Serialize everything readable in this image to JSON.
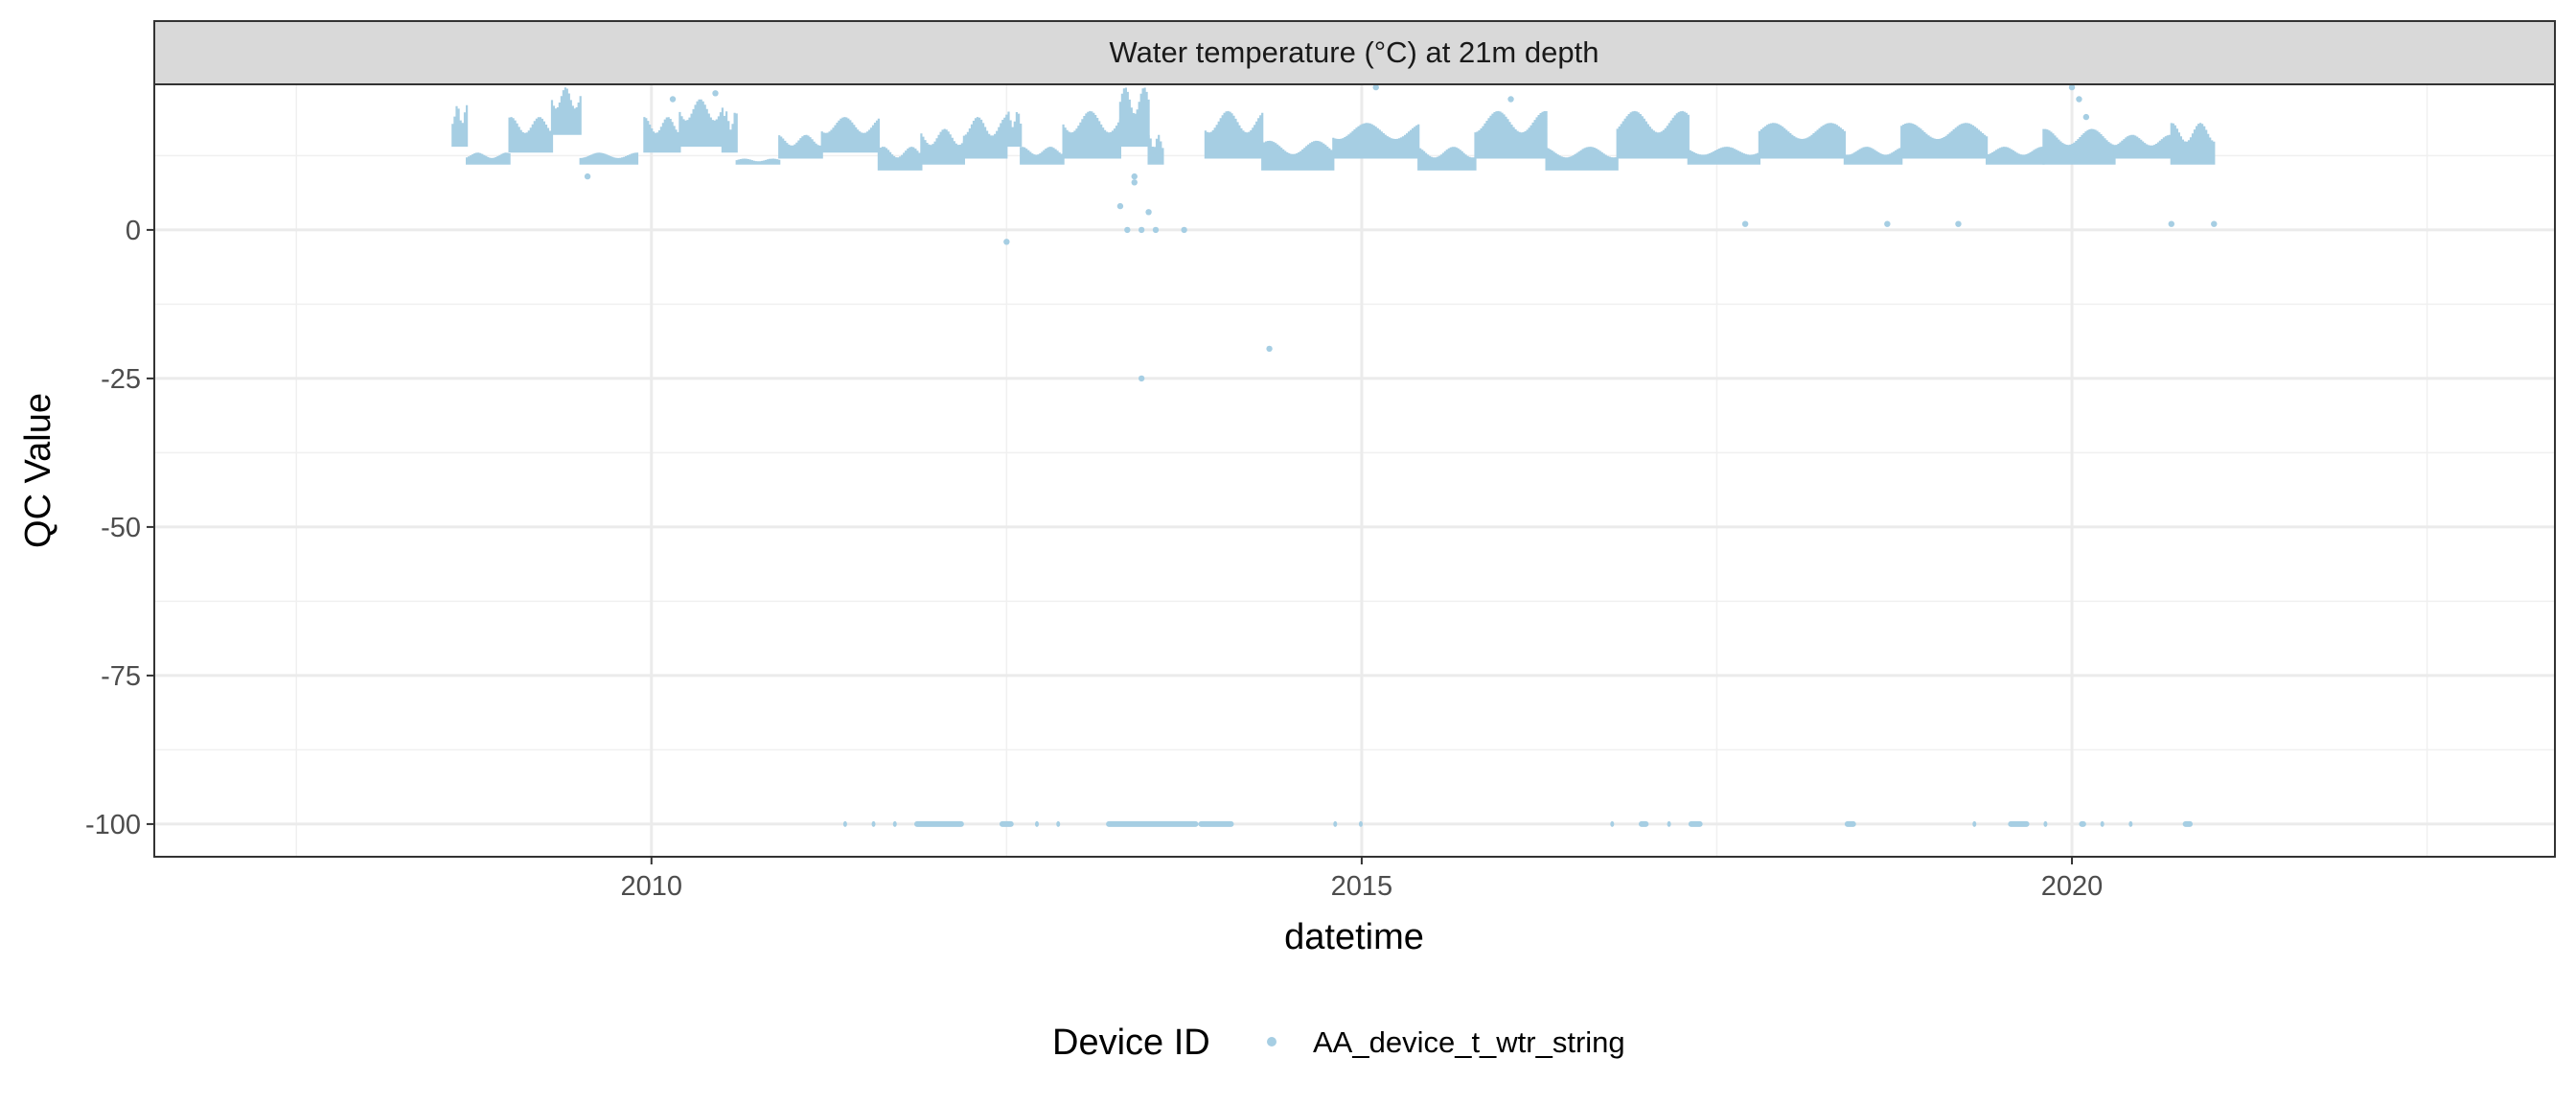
{
  "chart_data": {
    "type": "scatter",
    "facet_title": "Water temperature (°C) at 21m depth",
    "xlabel": "datetime",
    "ylabel": "QC Value",
    "x_range": [
      2006.5,
      2023.4
    ],
    "y_range": [
      -105.5,
      24.5
    ],
    "x_ticks": [
      2010,
      2015,
      2020
    ],
    "x_tick_labels": [
      "2010",
      "2015",
      "2020"
    ],
    "y_ticks": [
      0,
      -25,
      -50,
      -75,
      -100
    ],
    "y_tick_labels": [
      "0",
      "-25",
      "-50",
      "-75",
      "-100"
    ],
    "grid": true,
    "legend": {
      "position": "bottom",
      "title": "Device ID",
      "entries": [
        {
          "label": "AA_device_t_wtr_string",
          "color": "#a6cee3"
        }
      ]
    },
    "series": [
      {
        "name": "AA_device_t_wtr_string",
        "color": "#a6cee3",
        "segments": [
          {
            "start": 2008.6,
            "end": 2008.7,
            "low": 14,
            "high": 21
          },
          {
            "start": 2008.7,
            "end": 2009.0,
            "low": 11,
            "high": 13
          },
          {
            "start": 2009.0,
            "end": 2009.3,
            "low": 13,
            "high": 19
          },
          {
            "start": 2009.3,
            "end": 2009.5,
            "low": 16,
            "high": 24
          },
          {
            "start": 2009.5,
            "end": 2009.9,
            "low": 11,
            "high": 13
          },
          {
            "start": 2009.95,
            "end": 2010.2,
            "low": 13,
            "high": 19
          },
          {
            "start": 2010.2,
            "end": 2010.5,
            "low": 14,
            "high": 22
          },
          {
            "start": 2010.5,
            "end": 2010.6,
            "low": 13,
            "high": 20
          },
          {
            "start": 2010.6,
            "end": 2010.9,
            "low": 11,
            "high": 12
          },
          {
            "start": 2010.9,
            "end": 2011.2,
            "low": 12,
            "high": 16
          },
          {
            "start": 2011.2,
            "end": 2011.6,
            "low": 13,
            "high": 19
          },
          {
            "start": 2011.6,
            "end": 2011.9,
            "low": 10,
            "high": 14
          },
          {
            "start": 2011.9,
            "end": 2012.2,
            "low": 11,
            "high": 17
          },
          {
            "start": 2012.2,
            "end": 2012.5,
            "low": 12,
            "high": 19
          },
          {
            "start": 2012.5,
            "end": 2012.6,
            "low": 14,
            "high": 20
          },
          {
            "start": 2012.6,
            "end": 2012.9,
            "low": 11,
            "high": 14
          },
          {
            "start": 2012.9,
            "end": 2013.3,
            "low": 12,
            "high": 20
          },
          {
            "start": 2013.3,
            "end": 2013.5,
            "low": 14,
            "high": 24
          },
          {
            "start": 2013.5,
            "end": 2013.6,
            "low": 11,
            "high": 16
          },
          {
            "start": 2013.9,
            "end": 2014.3,
            "low": 12,
            "high": 20
          },
          {
            "start": 2014.3,
            "end": 2014.8,
            "low": 10,
            "high": 15
          },
          {
            "start": 2014.8,
            "end": 2015.4,
            "low": 12,
            "high": 18
          },
          {
            "start": 2015.4,
            "end": 2015.8,
            "low": 10,
            "high": 14
          },
          {
            "start": 2015.8,
            "end": 2016.3,
            "low": 12,
            "high": 20
          },
          {
            "start": 2016.3,
            "end": 2016.8,
            "low": 10,
            "high": 14
          },
          {
            "start": 2016.8,
            "end": 2017.3,
            "low": 12,
            "high": 20
          },
          {
            "start": 2017.3,
            "end": 2017.8,
            "low": 11,
            "high": 14
          },
          {
            "start": 2017.8,
            "end": 2018.4,
            "low": 12,
            "high": 18
          },
          {
            "start": 2018.4,
            "end": 2018.8,
            "low": 11,
            "high": 14
          },
          {
            "start": 2018.8,
            "end": 2019.4,
            "low": 12,
            "high": 18
          },
          {
            "start": 2019.4,
            "end": 2019.8,
            "low": 11,
            "high": 14
          },
          {
            "start": 2019.8,
            "end": 2020.3,
            "low": 11,
            "high": 17
          },
          {
            "start": 2020.3,
            "end": 2020.7,
            "low": 12,
            "high": 16
          },
          {
            "start": 2020.7,
            "end": 2021.0,
            "low": 11,
            "high": 18
          }
        ],
        "points": [
          [
            2009.55,
            9
          ],
          [
            2012.5,
            -2
          ],
          [
            2013.3,
            4
          ],
          [
            2013.35,
            0
          ],
          [
            2013.4,
            8
          ],
          [
            2013.45,
            0
          ],
          [
            2013.5,
            3
          ],
          [
            2013.55,
            0
          ],
          [
            2013.4,
            9
          ],
          [
            2013.75,
            0
          ],
          [
            2013.45,
            -25
          ],
          [
            2014.35,
            -20
          ],
          [
            2017.7,
            1
          ],
          [
            2018.7,
            1
          ],
          [
            2019.2,
            1
          ],
          [
            2020.7,
            1
          ],
          [
            2021.0,
            1
          ],
          [
            2015.1,
            24
          ],
          [
            2016.05,
            22
          ],
          [
            2020.0,
            24
          ],
          [
            2020.05,
            22
          ],
          [
            2020.1,
            19
          ],
          [
            2009.4,
            22
          ],
          [
            2010.15,
            22
          ],
          [
            2010.45,
            23
          ]
        ],
        "bottom_runs": [
          [
            2011.35,
            2011.37
          ],
          [
            2011.55,
            2011.57
          ],
          [
            2011.7,
            2011.72
          ],
          [
            2011.85,
            2012.2
          ],
          [
            2012.45,
            2012.55
          ],
          [
            2012.7,
            2012.72
          ],
          [
            2012.85,
            2012.87
          ],
          [
            2013.2,
            2013.85
          ],
          [
            2013.85,
            2014.1
          ],
          [
            2014.8,
            2014.82
          ],
          [
            2014.98,
            2015.0
          ],
          [
            2016.75,
            2016.77
          ],
          [
            2016.95,
            2017.02
          ],
          [
            2017.15,
            2017.17
          ],
          [
            2017.3,
            2017.4
          ],
          [
            2018.4,
            2018.48
          ],
          [
            2019.3,
            2019.32
          ],
          [
            2019.55,
            2019.7
          ],
          [
            2019.8,
            2019.82
          ],
          [
            2020.05,
            2020.1
          ],
          [
            2020.2,
            2020.22
          ],
          [
            2020.4,
            2020.42
          ],
          [
            2020.78,
            2020.85
          ]
        ],
        "bottom_value": -100
      }
    ]
  }
}
